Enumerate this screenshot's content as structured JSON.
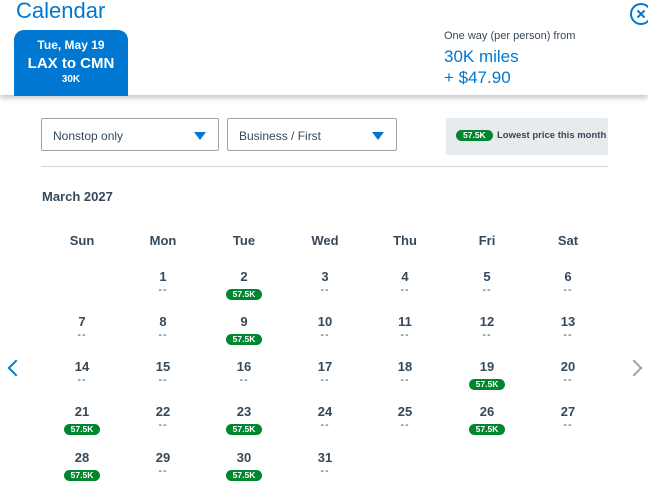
{
  "header": {
    "title": "Calendar",
    "close_icon": "close-circle-icon",
    "tab": {
      "date": "Tue, May 19",
      "route": "LAX to CMN",
      "price": "30K"
    },
    "fare": {
      "label": "One way (per person) from",
      "miles": "30K miles",
      "cash": "+ $47.90"
    }
  },
  "filters": {
    "stops": "Nonstop only",
    "cabin": "Business / First",
    "lowest_pill": "57.5K",
    "lowest_label": "Lowest price this month"
  },
  "calendar": {
    "month": "March 2027",
    "weekdays": [
      "Sun",
      "Mon",
      "Tue",
      "Wed",
      "Thu",
      "Fri",
      "Sat"
    ],
    "no_price": "--",
    "days": [
      {
        "d": "1",
        "p": null
      },
      {
        "d": "2",
        "p": "57.5K"
      },
      {
        "d": "3",
        "p": null
      },
      {
        "d": "4",
        "p": null
      },
      {
        "d": "5",
        "p": null
      },
      {
        "d": "6",
        "p": null
      },
      {
        "d": "7",
        "p": null
      },
      {
        "d": "8",
        "p": null
      },
      {
        "d": "9",
        "p": "57.5K"
      },
      {
        "d": "10",
        "p": null
      },
      {
        "d": "11",
        "p": null
      },
      {
        "d": "12",
        "p": null
      },
      {
        "d": "13",
        "p": null
      },
      {
        "d": "14",
        "p": null
      },
      {
        "d": "15",
        "p": null
      },
      {
        "d": "16",
        "p": null
      },
      {
        "d": "17",
        "p": null
      },
      {
        "d": "18",
        "p": null
      },
      {
        "d": "19",
        "p": "57.5K"
      },
      {
        "d": "20",
        "p": null
      },
      {
        "d": "21",
        "p": "57.5K"
      },
      {
        "d": "22",
        "p": null
      },
      {
        "d": "23",
        "p": "57.5K"
      },
      {
        "d": "24",
        "p": null
      },
      {
        "d": "25",
        "p": null
      },
      {
        "d": "26",
        "p": "57.5K"
      },
      {
        "d": "27",
        "p": null
      },
      {
        "d": "28",
        "p": "57.5K"
      },
      {
        "d": "29",
        "p": null
      },
      {
        "d": "30",
        "p": "57.5K"
      },
      {
        "d": "31",
        "p": null
      }
    ],
    "prev_icon": "chevron-left-icon",
    "next_icon": "chevron-right-icon"
  },
  "colors": {
    "accent": "#0078d2",
    "price_pill": "#00862f",
    "text": "#36495a"
  }
}
